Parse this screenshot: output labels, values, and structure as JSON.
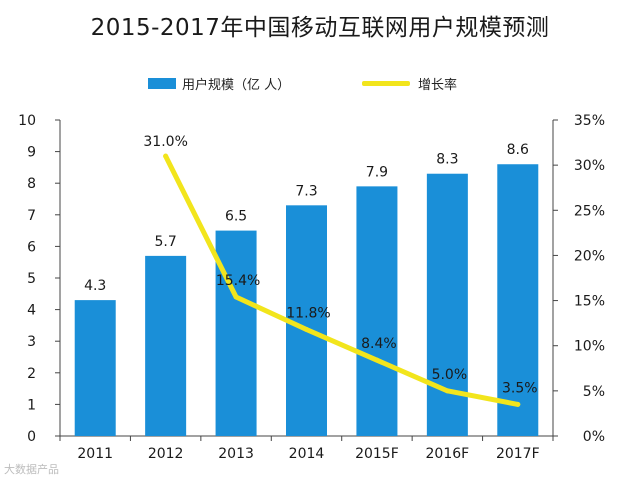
{
  "chart_data": {
    "type": "bar",
    "title": "2015-2017年中国移动互联网用户规模预测",
    "categories": [
      "2011",
      "2012",
      "2013",
      "2014",
      "2015F",
      "2016F",
      "2017F"
    ],
    "series": [
      {
        "name": "用户规模（亿 人）",
        "type": "bar",
        "axis": "left",
        "values": [
          4.3,
          5.7,
          6.5,
          7.3,
          7.9,
          8.3,
          8.6
        ],
        "labels": [
          "4.3",
          "5.7",
          "6.5",
          "7.3",
          "7.9",
          "8.3",
          "8.6"
        ]
      },
      {
        "name": "增长率",
        "type": "line",
        "axis": "right",
        "values": [
          null,
          31.0,
          15.4,
          11.8,
          8.4,
          5.0,
          3.5
        ],
        "labels": [
          "",
          "31.0%",
          "15.4%",
          "11.8%",
          "8.4%",
          "5.0%",
          "3.5%"
        ]
      }
    ],
    "ylim_left": [
      0,
      10
    ],
    "yticks_left": [
      "0",
      "1",
      "2",
      "3",
      "4",
      "5",
      "6",
      "7",
      "8",
      "9",
      "10"
    ],
    "ylim_right": [
      0,
      35
    ],
    "yticks_right": [
      "0%",
      "5%",
      "10%",
      "15%",
      "20%",
      "25%",
      "30%",
      "35%"
    ],
    "grid": false,
    "legend_position": "top",
    "colors": {
      "bar": "#1a8fd8",
      "line": "#f2e51c",
      "axis": "#444444",
      "text": "#1a1a1a"
    }
  },
  "watermark": "大数据产品"
}
